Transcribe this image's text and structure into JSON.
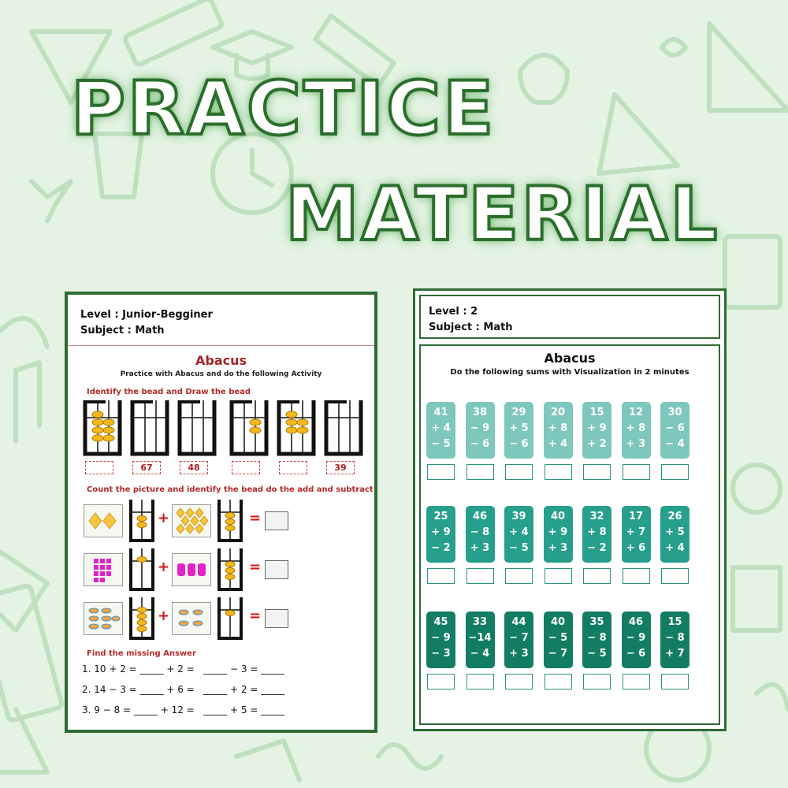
{
  "headline": {
    "line1": "PRACTICE",
    "line2": "MATERIAL"
  },
  "colors": {
    "background": "#e4f3e4",
    "frame": "#2e6b34",
    "red": "#b52a2a",
    "teal_light": "#7ec7bd",
    "teal_mid": "#26a08c",
    "teal_dark": "#127d63"
  },
  "sheet1": {
    "level": "Level : Junior-Begginer",
    "subject": "Subject : Math",
    "title": "Abacus",
    "subtitle": "Practice with Abacus and do the following Activity",
    "section1": "Identify the bead and Draw the bead",
    "answers": [
      "",
      "67",
      "48",
      "",
      "",
      "39"
    ],
    "section2": "Count the picture and identify the bead do the add and subtract",
    "ops": [
      "+",
      "+",
      "+"
    ],
    "equals": "=",
    "section3": "Find the missing Answer",
    "missing": [
      "1. 10 + 2 = _____ + 2 =   _____ − 3 = _____",
      "2. 14 − 3 = _____ + 6 =   _____ + 2 = _____",
      "3. 9 − 8 = _____ + 12 =   _____ + 5 = _____"
    ]
  },
  "sheet2": {
    "level": "Level : 2",
    "subject": "Subject : Math",
    "title": "Abacus",
    "subtitle": "Do the following sums with Visualization in 2 minutes",
    "rows": [
      [
        [
          "41",
          "+ 4",
          "− 5"
        ],
        [
          "38",
          "− 9",
          "− 6"
        ],
        [
          "29",
          "+ 5",
          "− 6"
        ],
        [
          "20",
          "+ 8",
          "+ 4"
        ],
        [
          "15",
          "+ 9",
          "+ 2"
        ],
        [
          "12",
          "+ 8",
          "+ 3"
        ],
        [
          "30",
          "− 6",
          "− 4"
        ]
      ],
      [
        [
          "25",
          "+ 9",
          "− 2"
        ],
        [
          "46",
          "− 8",
          "+ 3"
        ],
        [
          "39",
          "+ 4",
          "− 5"
        ],
        [
          "40",
          "+ 9",
          "+ 3"
        ],
        [
          "32",
          "+ 8",
          "− 2"
        ],
        [
          "17",
          "+ 7",
          "+ 6"
        ],
        [
          "26",
          "+ 5",
          "+ 4"
        ]
      ],
      [
        [
          "45",
          "− 9",
          "− 3"
        ],
        [
          "33",
          "−14",
          "− 4"
        ],
        [
          "44",
          "− 7",
          "+ 3"
        ],
        [
          "40",
          "− 5",
          "− 7"
        ],
        [
          "35",
          "− 8",
          "− 5"
        ],
        [
          "46",
          "− 9",
          "− 6"
        ],
        [
          "15",
          "− 8",
          "+ 7"
        ]
      ]
    ]
  }
}
